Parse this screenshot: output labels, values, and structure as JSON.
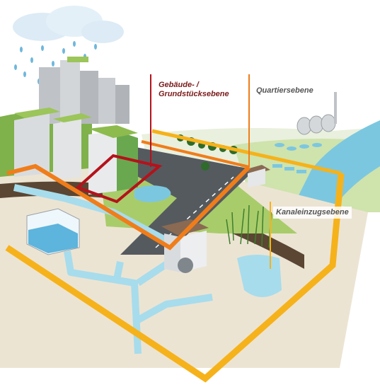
{
  "labels": {
    "building_level_line1": "Gebäude- /",
    "building_level_line2": "Grundstücksebene",
    "district_level": "Quartiersebene",
    "sewer_catchment_level": "Kanaleinzugsebene"
  },
  "colors": {
    "building_frame": "#b5121b",
    "district_frame": "#f07d1a",
    "catchment_frame": "#f6b21a",
    "water": "#8fd3e6",
    "river": "#7cc7e0",
    "grass": "#9cc55a",
    "soil": "#d8c9ae",
    "road": "#555a5f"
  }
}
